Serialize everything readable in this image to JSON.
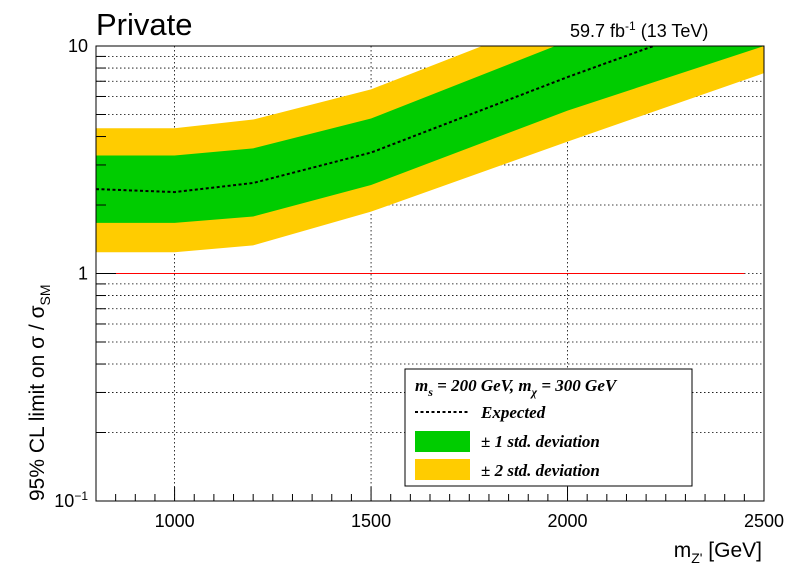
{
  "header": {
    "label": "Private",
    "lumi": "59.7 fb",
    "lumi_exp": "-1",
    "energy": " (13 TeV)"
  },
  "chart_data": {
    "type": "line",
    "title": "",
    "xlabel": "m",
    "xlabel_sub": "Z'",
    "xlabel_unit": " [GeV]",
    "ylabel": "95% CL limit on  σ / σ",
    "ylabel_sub": "SM",
    "xlim": [
      800,
      2500
    ],
    "ylim": [
      0.1,
      10
    ],
    "yscale": "log",
    "grid": true,
    "x_ticks": [
      1000,
      1500,
      2000,
      2500
    ],
    "y_ticks": [
      {
        "value": 0.1,
        "label": "10",
        "exp": "−1"
      },
      {
        "value": 1,
        "label": "1",
        "exp": ""
      },
      {
        "value": 10,
        "label": "10",
        "exp": ""
      }
    ],
    "x": [
      800,
      1000,
      1200,
      1500,
      2000,
      2500
    ],
    "expected": [
      2.35,
      2.28,
      2.5,
      3.4,
      7.3,
      15.0
    ],
    "band_1sigma": {
      "lower": [
        1.67,
        1.67,
        1.78,
        2.45,
        5.2,
        10.0
      ],
      "upper": [
        3.3,
        3.3,
        3.55,
        4.8,
        10.5,
        21.0
      ]
    },
    "band_2sigma": {
      "lower": [
        1.24,
        1.24,
        1.33,
        1.87,
        3.8,
        7.6
      ],
      "upper": [
        4.35,
        4.35,
        4.75,
        6.45,
        14.0,
        28.0
      ]
    },
    "reference_line": {
      "value": 1,
      "color": "#ff0000"
    },
    "colors": {
      "band_1sigma": "#00cc00",
      "band_2sigma": "#ffcc00",
      "expected": "#000000"
    },
    "legend": {
      "placement": "bottom-right",
      "header_ms": "m",
      "header_ms_sub": "s",
      "header_ms_val": " = 200 GeV, m",
      "header_mchi_sub": "χ",
      "header_mchi_val": " = 300 GeV",
      "entries": [
        {
          "label": "Expected",
          "kind": "dashed-line"
        },
        {
          "label": "± 1 std. deviation",
          "kind": "fill-1sigma"
        },
        {
          "label": "± 2 std. deviation",
          "kind": "fill-2sigma"
        }
      ]
    }
  }
}
